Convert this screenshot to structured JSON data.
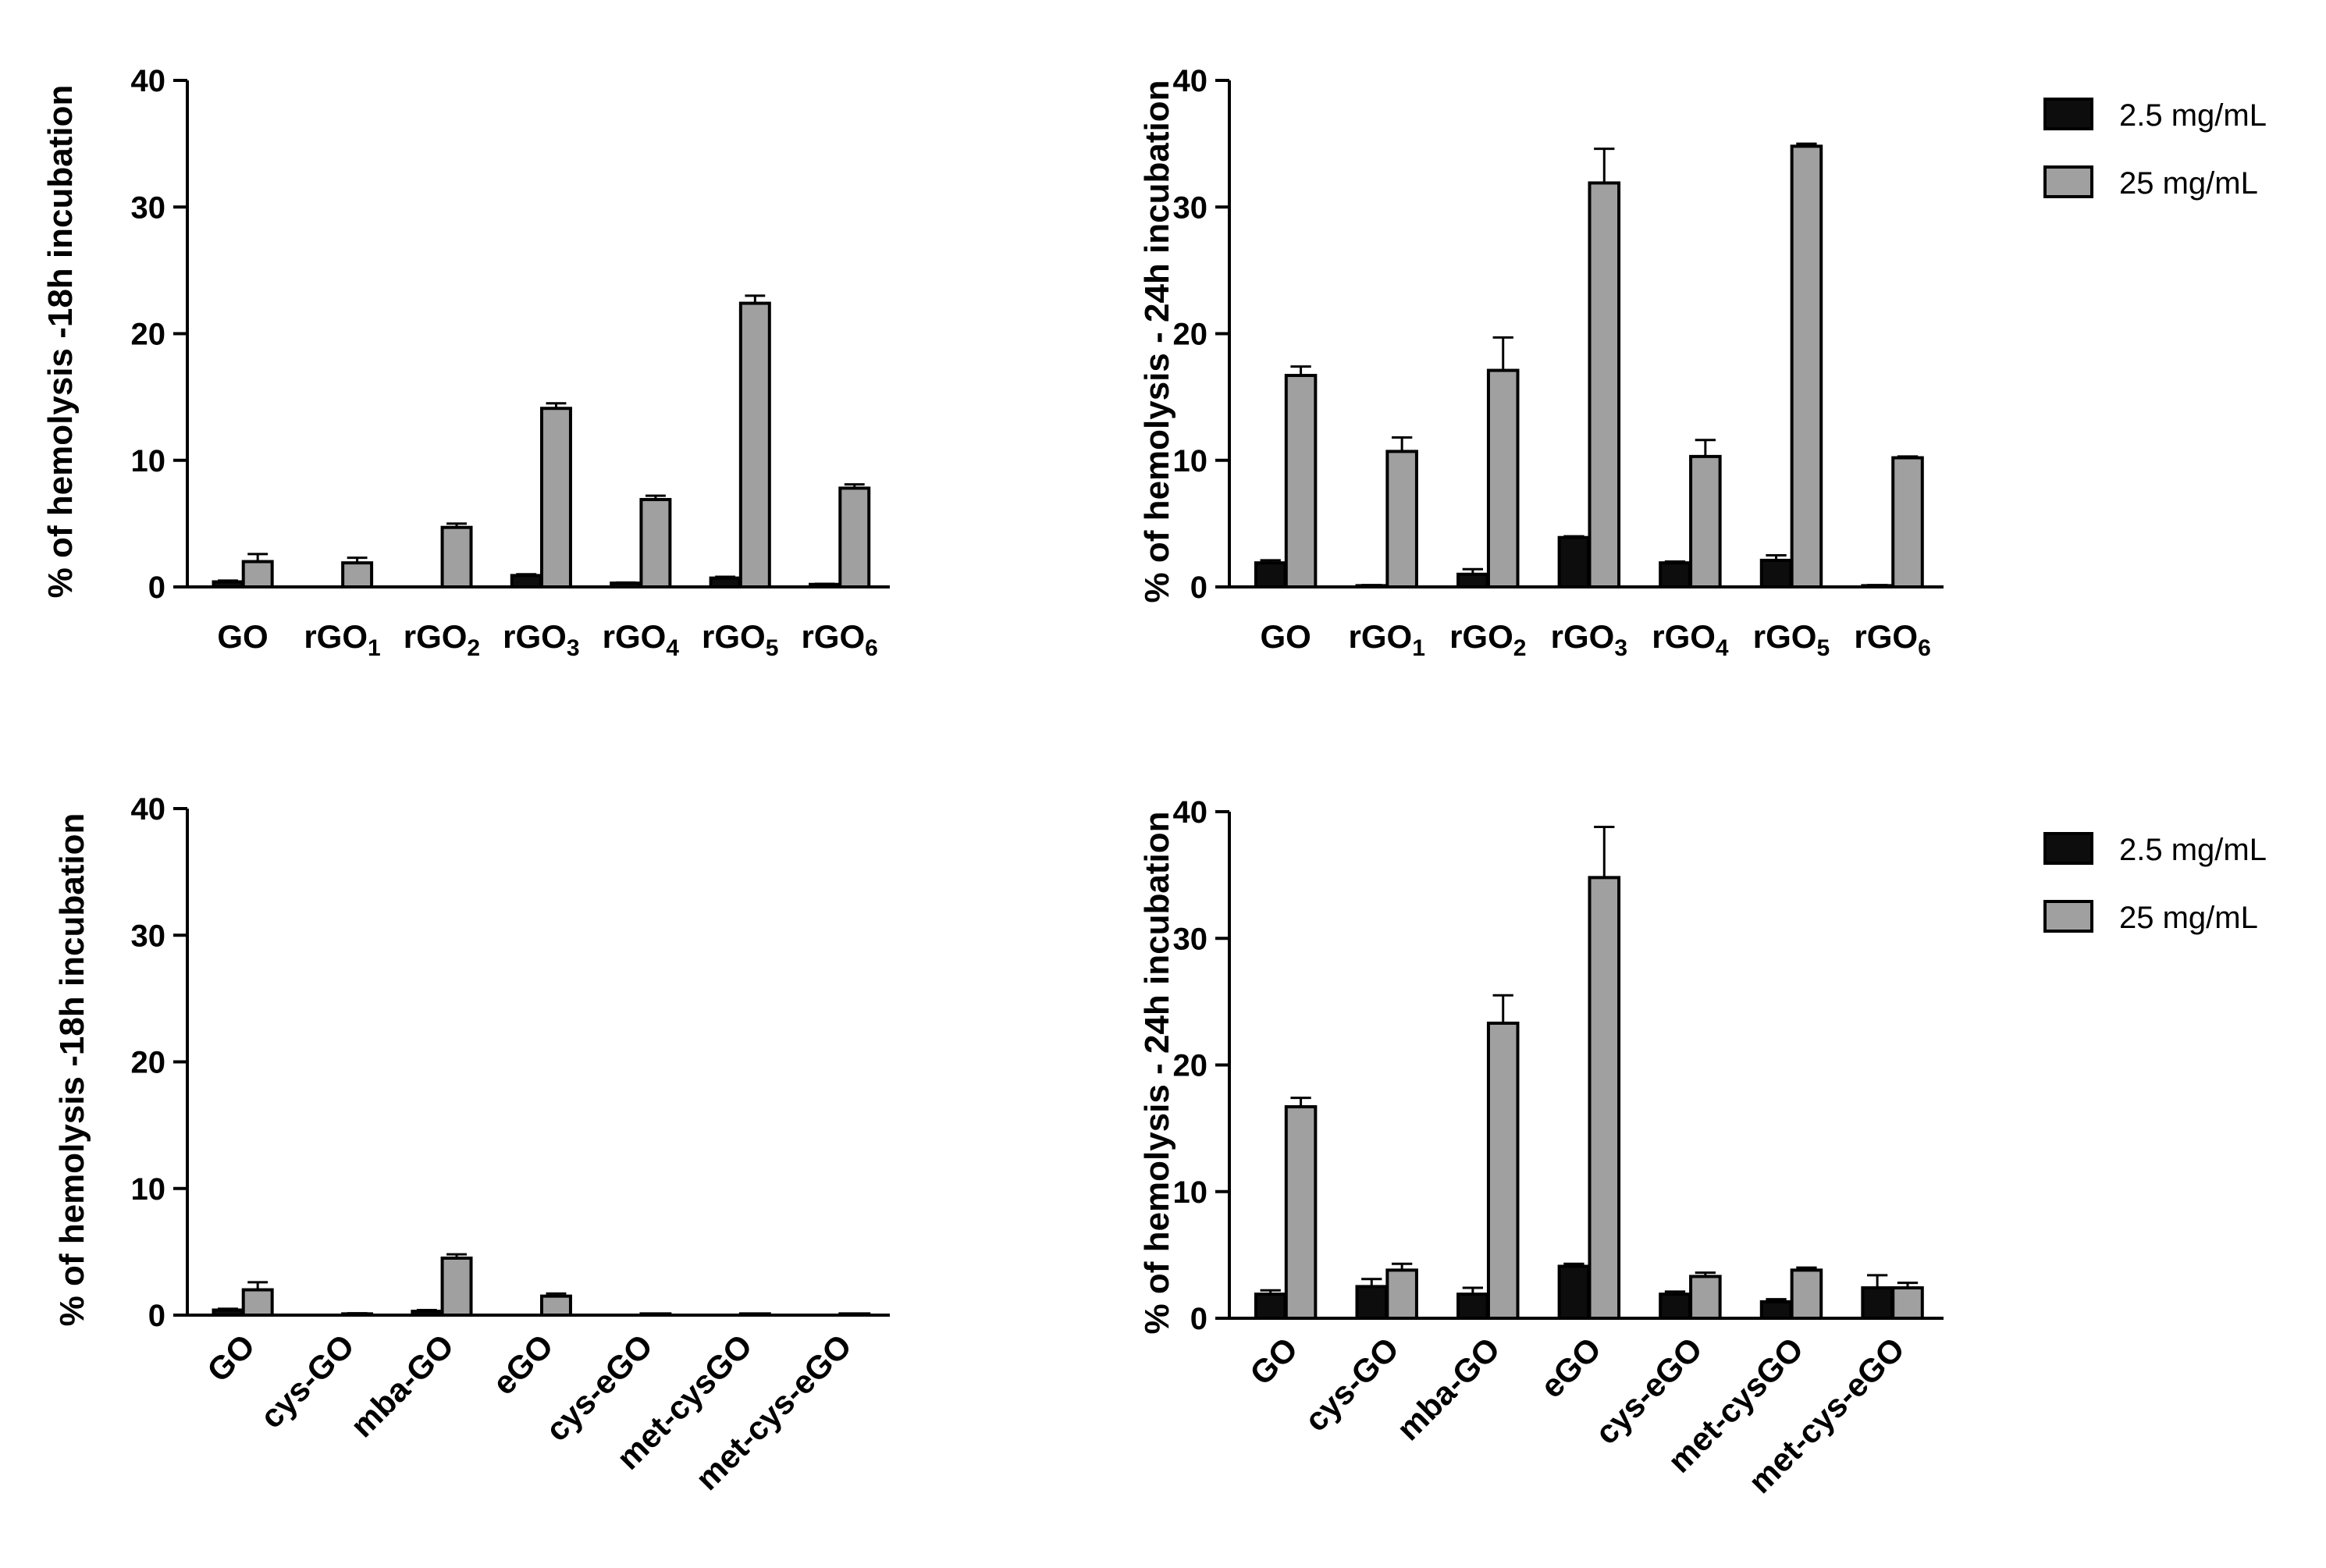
{
  "colors": {
    "series1": "#0d0d0d",
    "series2": "#a0a0a0",
    "axis": "#000000"
  },
  "legend_entries": [
    {
      "name": "2.5 mg/mL",
      "color": "#0d0d0d"
    },
    {
      "name": "25 mg/mL",
      "color": "#a0a0a0"
    }
  ],
  "chart_data": [
    {
      "type": "bar",
      "ylabel": "% of hemolysis -18h incubation",
      "ylim": [
        0,
        40
      ],
      "yticks": [
        0,
        10,
        20,
        30,
        40
      ],
      "categories": [
        {
          "base": "GO",
          "sub": ""
        },
        {
          "base": "rGO",
          "sub": "1"
        },
        {
          "base": "rGO",
          "sub": "2"
        },
        {
          "base": "rGO",
          "sub": "3"
        },
        {
          "base": "rGO",
          "sub": "4"
        },
        {
          "base": "rGO",
          "sub": "5"
        },
        {
          "base": "rGO",
          "sub": "6"
        }
      ],
      "label_rotation": 0,
      "series": [
        {
          "name": "2.5 mg/mL",
          "values": [
            0.4,
            0,
            0,
            0.9,
            0.3,
            0.7,
            0.2
          ],
          "errors": [
            0.1,
            0,
            0,
            0.1,
            0.05,
            0.1,
            0.05
          ]
        },
        {
          "name": "25 mg/mL",
          "values": [
            2.0,
            1.9,
            4.7,
            14.1,
            6.9,
            22.4,
            7.8
          ],
          "errors": [
            0.6,
            0.4,
            0.3,
            0.4,
            0.3,
            0.6,
            0.3
          ]
        }
      ],
      "legend": false
    },
    {
      "type": "bar",
      "ylabel": "% of hemolysis - 24h incubation",
      "ylim": [
        0,
        40
      ],
      "yticks": [
        0,
        10,
        20,
        30,
        40
      ],
      "categories": [
        {
          "base": "GO",
          "sub": ""
        },
        {
          "base": "rGO",
          "sub": "1"
        },
        {
          "base": "rGO",
          "sub": "2"
        },
        {
          "base": "rGO",
          "sub": "3"
        },
        {
          "base": "rGO",
          "sub": "4"
        },
        {
          "base": "rGO",
          "sub": "5"
        },
        {
          "base": "rGO",
          "sub": "6"
        }
      ],
      "label_rotation": 0,
      "series": [
        {
          "name": "2.5 mg/mL",
          "values": [
            1.9,
            0.1,
            1.0,
            3.9,
            1.9,
            2.1,
            0.1
          ],
          "errors": [
            0.2,
            0.05,
            0.4,
            0.1,
            0.1,
            0.4,
            0.05
          ]
        },
        {
          "name": "25 mg/mL",
          "values": [
            16.7,
            10.7,
            17.1,
            31.9,
            10.3,
            34.8,
            10.2
          ],
          "errors": [
            0.7,
            1.1,
            2.6,
            2.7,
            1.3,
            0.2,
            0.1
          ]
        }
      ],
      "legend": true,
      "legend_position": "top-right"
    },
    {
      "type": "bar",
      "ylabel": "% of hemolysis -18h incubation",
      "ylim": [
        0,
        40
      ],
      "yticks": [
        0,
        10,
        20,
        30,
        40
      ],
      "categories": [
        {
          "base": "GO",
          "sub": ""
        },
        {
          "base": "cys-GO",
          "sub": ""
        },
        {
          "base": "mba-GO",
          "sub": ""
        },
        {
          "base": "eGO",
          "sub": ""
        },
        {
          "base": "cys-eGO",
          "sub": ""
        },
        {
          "base": "met-cysGO",
          "sub": ""
        },
        {
          "base": "met-cys-eGO",
          "sub": ""
        }
      ],
      "label_rotation": -45,
      "series": [
        {
          "name": "2.5 mg/mL",
          "values": [
            0.4,
            0,
            0.3,
            0,
            0,
            0,
            0
          ],
          "errors": [
            0.1,
            0,
            0.1,
            0,
            0,
            0,
            0
          ]
        },
        {
          "name": "25 mg/mL",
          "values": [
            2.0,
            0.1,
            4.5,
            1.5,
            0.1,
            0.1,
            0.1
          ],
          "errors": [
            0.6,
            0.05,
            0.3,
            0.2,
            0.02,
            0.02,
            0.02
          ]
        }
      ],
      "legend": false
    },
    {
      "type": "bar",
      "ylabel": "% of hemolysis - 24h incubation",
      "ylim": [
        0,
        40
      ],
      "yticks": [
        0,
        10,
        20,
        30,
        40
      ],
      "categories": [
        {
          "base": "GO",
          "sub": ""
        },
        {
          "base": "cys-GO",
          "sub": ""
        },
        {
          "base": "mba-GO",
          "sub": ""
        },
        {
          "base": "eGO",
          "sub": ""
        },
        {
          "base": "cys-eGO",
          "sub": ""
        },
        {
          "base": "met-cysGO",
          "sub": ""
        },
        {
          "base": "met-cys-eGO",
          "sub": ""
        }
      ],
      "label_rotation": -45,
      "series": [
        {
          "name": "2.5 mg/mL",
          "values": [
            1.9,
            2.5,
            1.9,
            4.1,
            1.9,
            1.3,
            2.4
          ],
          "errors": [
            0.3,
            0.6,
            0.5,
            0.2,
            0.2,
            0.2,
            1.0
          ]
        },
        {
          "name": "25 mg/mL",
          "values": [
            16.7,
            3.8,
            23.3,
            34.8,
            3.3,
            3.8,
            2.4
          ],
          "errors": [
            0.7,
            0.5,
            2.2,
            4.0,
            0.3,
            0.2,
            0.4
          ]
        }
      ],
      "legend": true,
      "legend_position": "top-right"
    }
  ]
}
